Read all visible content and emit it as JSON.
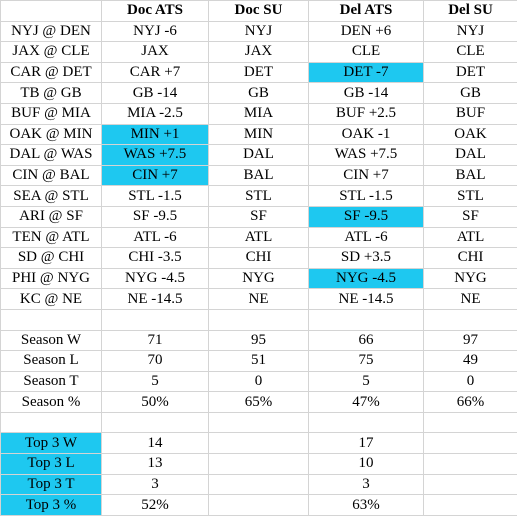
{
  "highlight_color": "#1ec8f0",
  "header": [
    "",
    "Doc ATS",
    "Doc SU",
    "Del ATS",
    "Del SU"
  ],
  "games": [
    {
      "game": "NYJ @ DEN",
      "doc_ats": "NYJ -6",
      "doc_su": "NYJ",
      "del_ats": "DEN +6",
      "del_su": "NYJ"
    },
    {
      "game": "JAX @ CLE",
      "doc_ats": "JAX",
      "doc_su": "JAX",
      "del_ats": "CLE",
      "del_su": "CLE"
    },
    {
      "game": "CAR @ DET",
      "doc_ats": "CAR +7",
      "doc_su": "DET",
      "del_ats": "DET -7",
      "del_su": "DET"
    },
    {
      "game": "TB @ GB",
      "doc_ats": "GB -14",
      "doc_su": "GB",
      "del_ats": "GB -14",
      "del_su": "GB"
    },
    {
      "game": "BUF @ MIA",
      "doc_ats": "MIA -2.5",
      "doc_su": "MIA",
      "del_ats": "BUF +2.5",
      "del_su": "BUF"
    },
    {
      "game": "OAK @ MIN",
      "doc_ats": "MIN +1",
      "doc_su": "MIN",
      "del_ats": "OAK -1",
      "del_su": "OAK"
    },
    {
      "game": "DAL @ WAS",
      "doc_ats": "WAS +7.5",
      "doc_su": "DAL",
      "del_ats": "WAS +7.5",
      "del_su": "DAL"
    },
    {
      "game": "CIN @ BAL",
      "doc_ats": "CIN +7",
      "doc_su": "BAL",
      "del_ats": "CIN +7",
      "del_su": "BAL"
    },
    {
      "game": "SEA @ STL",
      "doc_ats": "STL -1.5",
      "doc_su": "STL",
      "del_ats": "STL -1.5",
      "del_su": "STL"
    },
    {
      "game": "ARI @ SF",
      "doc_ats": "SF -9.5",
      "doc_su": "SF",
      "del_ats": "SF -9.5",
      "del_su": "SF"
    },
    {
      "game": "TEN @ ATL",
      "doc_ats": "ATL -6",
      "doc_su": "ATL",
      "del_ats": "ATL -6",
      "del_su": "ATL"
    },
    {
      "game": "SD @ CHI",
      "doc_ats": "CHI -3.5",
      "doc_su": "CHI",
      "del_ats": "SD +3.5",
      "del_su": "CHI"
    },
    {
      "game": "PHI @ NYG",
      "doc_ats": "NYG -4.5",
      "doc_su": "NYG",
      "del_ats": "NYG -4.5",
      "del_su": "NYG"
    },
    {
      "game": "KC @ NE",
      "doc_ats": "NE -14.5",
      "doc_su": "NE",
      "del_ats": "NE -14.5",
      "del_su": "NE"
    }
  ],
  "season": [
    {
      "label": "Season W",
      "doc_ats": "71",
      "doc_su": "95",
      "del_ats": "66",
      "del_su": "97"
    },
    {
      "label": "Season L",
      "doc_ats": "70",
      "doc_su": "51",
      "del_ats": "75",
      "del_su": "49"
    },
    {
      "label": "Season T",
      "doc_ats": "5",
      "doc_su": "0",
      "del_ats": "5",
      "del_su": "0"
    },
    {
      "label": "Season %",
      "doc_ats": "50%",
      "doc_su": "65%",
      "del_ats": "47%",
      "del_su": "66%"
    }
  ],
  "top3": [
    {
      "label": "Top 3 W",
      "doc_ats": "14",
      "doc_su": "",
      "del_ats": "17",
      "del_su": ""
    },
    {
      "label": "Top 3 L",
      "doc_ats": "13",
      "doc_su": "",
      "del_ats": "10",
      "del_su": ""
    },
    {
      "label": "Top 3 T",
      "doc_ats": "3",
      "doc_su": "",
      "del_ats": "3",
      "del_su": ""
    },
    {
      "label": "Top 3 %",
      "doc_ats": "52%",
      "doc_su": "",
      "del_ats": "63%",
      "del_su": ""
    }
  ]
}
